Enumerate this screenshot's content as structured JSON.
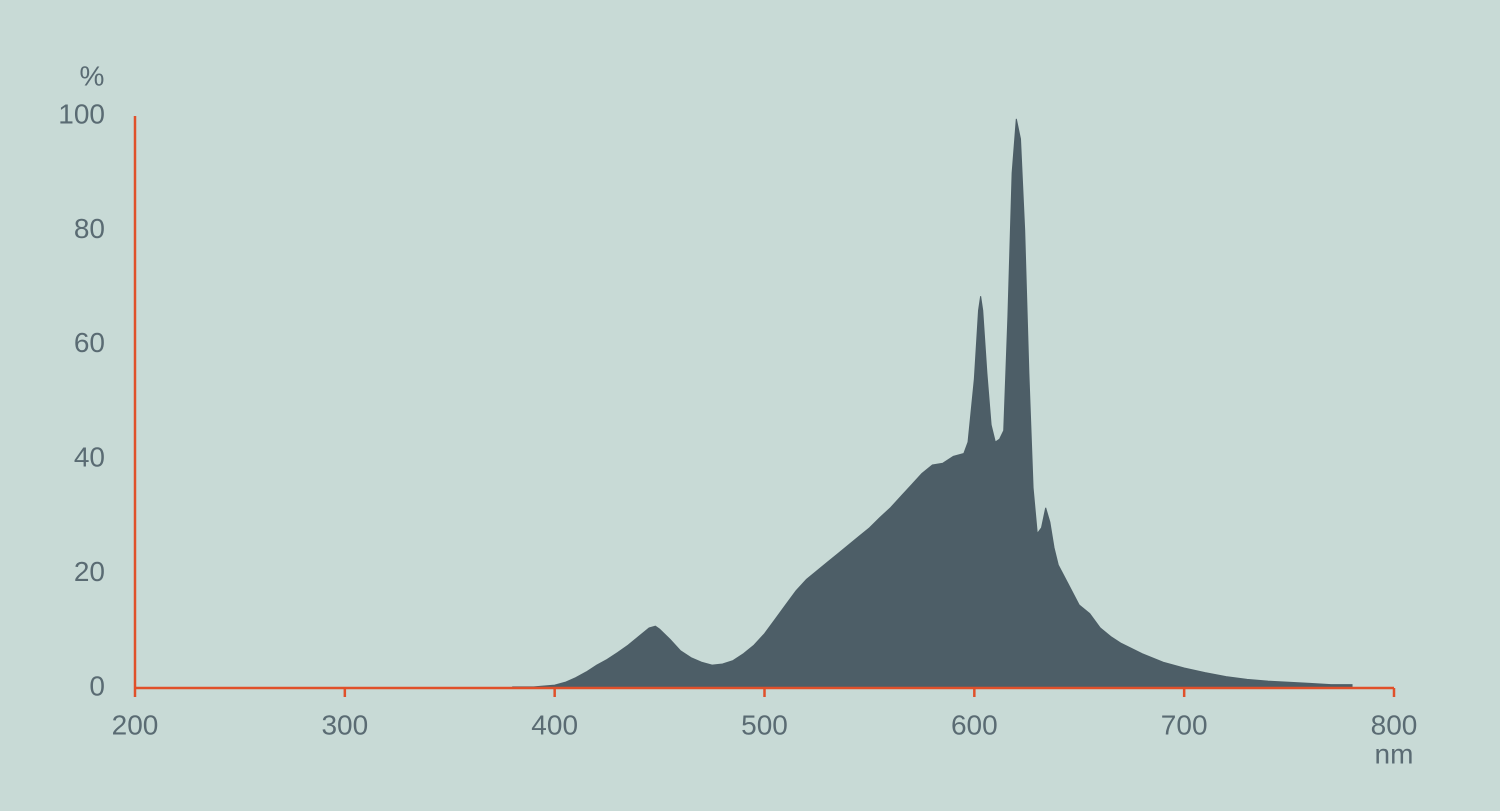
{
  "chart_data": {
    "type": "area",
    "y_unit": "%",
    "x_unit": "nm",
    "x": [
      380,
      390,
      400,
      405,
      410,
      415,
      420,
      425,
      430,
      435,
      440,
      445,
      448,
      450,
      455,
      460,
      465,
      470,
      475,
      480,
      485,
      490,
      495,
      500,
      505,
      510,
      515,
      520,
      525,
      530,
      535,
      540,
      545,
      550,
      555,
      560,
      565,
      570,
      575,
      580,
      585,
      590,
      595,
      597,
      600,
      602,
      603,
      604,
      606,
      608,
      610,
      612,
      614,
      616,
      618,
      620,
      622,
      624,
      626,
      628,
      630,
      632,
      634,
      636,
      638,
      640,
      645,
      650,
      655,
      660,
      665,
      670,
      680,
      690,
      700,
      710,
      720,
      730,
      740,
      750,
      760,
      770,
      780
    ],
    "values": [
      0.2,
      0.2,
      0.5,
      1,
      1.8,
      2.8,
      4,
      5,
      6.2,
      7.5,
      9,
      10.5,
      10.8,
      10.3,
      8.5,
      6.5,
      5.3,
      4.5,
      4,
      4.2,
      4.8,
      6,
      7.5,
      9.5,
      12,
      14.5,
      17,
      19,
      20.5,
      22,
      23.5,
      25,
      26.5,
      28,
      29.8,
      31.5,
      33.5,
      35.5,
      37.5,
      39,
      39.3,
      40.5,
      41,
      43,
      54,
      66,
      68.5,
      66,
      55,
      46,
      43,
      43.5,
      45,
      65,
      90,
      99.5,
      96,
      80,
      55,
      35,
      27,
      28,
      31.5,
      29,
      24.5,
      21.5,
      18,
      14.5,
      13,
      10.5,
      9,
      7.8,
      6,
      4.5,
      3.5,
      2.7,
      2,
      1.5,
      1.2,
      1,
      0.8,
      0.6,
      0.6
    ],
    "color": "#4d5e67",
    "axis_color": "#e0502a",
    "xlim": [
      200,
      800
    ],
    "xticks": [
      200,
      300,
      400,
      500,
      600,
      700,
      800
    ],
    "ylim": [
      0,
      100
    ],
    "yticks": [
      0,
      20,
      40,
      60,
      80,
      100
    ]
  }
}
